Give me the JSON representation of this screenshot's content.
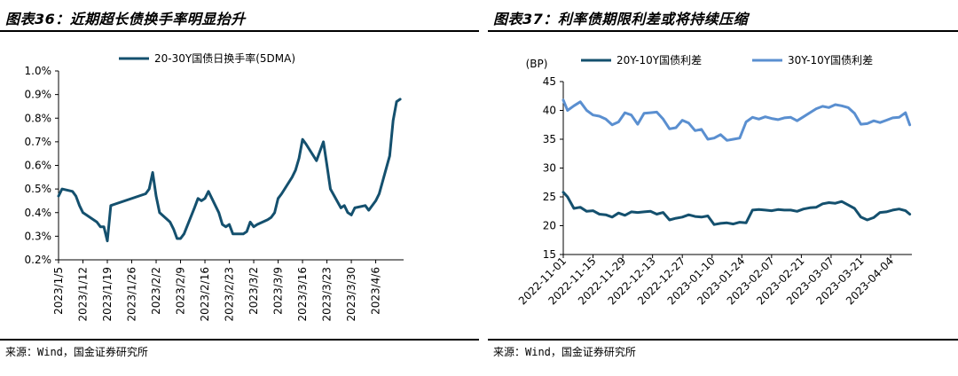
{
  "charts": [
    {
      "figure_title": "图表36：近期超长债换手率明显抬升",
      "source": "来源：Wind，国金证券研究所"
    },
    {
      "figure_title": "图表37：利率债期限利差或将持续压缩",
      "source": "来源：Wind，国金证券研究所"
    }
  ],
  "colors": {
    "dark_teal": "#14506e",
    "light_blue": "#5a8fd0"
  },
  "chart_data": [
    {
      "type": "line",
      "title": "",
      "xlabel": "",
      "ylabel": "",
      "ylim": [
        0.002,
        0.01
      ],
      "y_ticks": [
        0.002,
        0.003,
        0.004,
        0.005,
        0.006,
        0.007,
        0.008,
        0.009,
        0.01
      ],
      "y_tick_labels": [
        "0.2%",
        "0.3%",
        "0.4%",
        "0.5%",
        "0.6%",
        "0.7%",
        "0.8%",
        "0.9%",
        "1.0%"
      ],
      "x_tick_labels": [
        "2023/1/5",
        "2023/1/12",
        "2023/1/19",
        "2023/1/26",
        "2023/2/2",
        "2023/2/9",
        "2023/2/16",
        "2023/2/23",
        "2023/3/2",
        "2023/3/9",
        "2023/3/16",
        "2023/3/23",
        "2023/3/30",
        "2023/4/6"
      ],
      "legend_position": "top",
      "grid": false,
      "series": [
        {
          "name": "20-30Y国债日换手率(5DMA)",
          "color": "#14506e",
          "x": [
            "2023-01-05",
            "2023-01-06",
            "2023-01-09",
            "2023-01-10",
            "2023-01-11",
            "2023-01-12",
            "2023-01-13",
            "2023-01-16",
            "2023-01-17",
            "2023-01-18",
            "2023-01-19",
            "2023-01-20",
            "2023-01-30",
            "2023-01-31",
            "2023-02-01",
            "2023-02-02",
            "2023-02-03",
            "2023-02-06",
            "2023-02-07",
            "2023-02-08",
            "2023-02-09",
            "2023-02-10",
            "2023-02-13",
            "2023-02-14",
            "2023-02-15",
            "2023-02-16",
            "2023-02-17",
            "2023-02-20",
            "2023-02-21",
            "2023-02-22",
            "2023-02-23",
            "2023-02-24",
            "2023-02-27",
            "2023-02-28",
            "2023-03-01",
            "2023-03-02",
            "2023-03-03",
            "2023-03-06",
            "2023-03-07",
            "2023-03-08",
            "2023-03-09",
            "2023-03-10",
            "2023-03-13",
            "2023-03-14",
            "2023-03-15",
            "2023-03-16",
            "2023-03-17",
            "2023-03-20",
            "2023-03-21",
            "2023-03-22",
            "2023-03-23",
            "2023-03-24",
            "2023-03-27",
            "2023-03-28",
            "2023-03-29",
            "2023-03-30",
            "2023-03-31",
            "2023-04-03",
            "2023-04-04",
            "2023-04-06",
            "2023-04-07",
            "2023-04-10",
            "2023-04-11",
            "2023-04-12",
            "2023-04-13"
          ],
          "values": [
            0.0047,
            0.005,
            0.0049,
            0.0047,
            0.0043,
            0.004,
            0.0039,
            0.0036,
            0.0034,
            0.0034,
            0.0028,
            0.0043,
            0.0048,
            0.005,
            0.0057,
            0.0047,
            0.004,
            0.0036,
            0.0033,
            0.0029,
            0.0029,
            0.0031,
            0.0042,
            0.0046,
            0.0045,
            0.0046,
            0.0049,
            0.004,
            0.0035,
            0.0034,
            0.0035,
            0.0031,
            0.0031,
            0.0032,
            0.0036,
            0.0034,
            0.0035,
            0.0037,
            0.0038,
            0.004,
            0.0046,
            0.0048,
            0.0055,
            0.0058,
            0.0063,
            0.0071,
            0.0069,
            0.0062,
            0.0066,
            0.007,
            0.006,
            0.005,
            0.0042,
            0.0043,
            0.004,
            0.0039,
            0.0042,
            0.0043,
            0.0041,
            0.0045,
            0.0048,
            0.0064,
            0.0079,
            0.0087,
            0.0088
          ]
        }
      ]
    },
    {
      "type": "line",
      "title": "",
      "xlabel": "",
      "ylabel": "(BP)",
      "ylim": [
        15,
        45
      ],
      "y_ticks": [
        15,
        20,
        25,
        30,
        35,
        40,
        45
      ],
      "y_tick_labels": [
        "15",
        "20",
        "25",
        "30",
        "35",
        "40",
        "45"
      ],
      "x_tick_labels": [
        "2022-11-01",
        "2022-11-15",
        "2022-11-29",
        "2022-12-13",
        "2022-12-27",
        "2023-01-10",
        "2023-01-24",
        "2023-02-07",
        "2023-02-21",
        "2023-03-07",
        "2023-03-21",
        "2023-04-04"
      ],
      "legend_position": "top",
      "grid": false,
      "series": [
        {
          "name": "20Y-10Y国债利差",
          "color": "#14506e",
          "x": [
            "2022-11-01",
            "2022-11-03",
            "2022-11-06",
            "2022-11-09",
            "2022-11-12",
            "2022-11-15",
            "2022-11-18",
            "2022-11-21",
            "2022-11-24",
            "2022-11-27",
            "2022-11-30",
            "2022-12-03",
            "2022-12-06",
            "2022-12-09",
            "2022-12-12",
            "2022-12-15",
            "2022-12-18",
            "2022-12-21",
            "2022-12-24",
            "2022-12-27",
            "2022-12-30",
            "2023-01-02",
            "2023-01-05",
            "2023-01-08",
            "2023-01-11",
            "2023-01-14",
            "2023-01-17",
            "2023-01-20",
            "2023-01-23",
            "2023-01-26",
            "2023-01-29",
            "2023-02-01",
            "2023-02-04",
            "2023-02-07",
            "2023-02-10",
            "2023-02-13",
            "2023-02-16",
            "2023-02-19",
            "2023-02-22",
            "2023-02-25",
            "2023-02-28",
            "2023-03-03",
            "2023-03-06",
            "2023-03-09",
            "2023-03-12",
            "2023-03-15",
            "2023-03-18",
            "2023-03-21",
            "2023-03-24",
            "2023-03-27",
            "2023-03-30",
            "2023-04-02",
            "2023-04-05",
            "2023-04-08",
            "2023-04-11",
            "2023-04-13"
          ],
          "values": [
            25.8,
            25.0,
            23.0,
            23.2,
            22.5,
            22.6,
            22.0,
            21.9,
            21.5,
            22.2,
            21.8,
            22.4,
            22.3,
            22.4,
            22.5,
            22.0,
            22.3,
            21.0,
            21.3,
            21.5,
            21.9,
            21.6,
            21.5,
            21.7,
            20.2,
            20.4,
            20.5,
            20.3,
            20.6,
            20.5,
            22.7,
            22.8,
            22.7,
            22.6,
            22.8,
            22.7,
            22.7,
            22.5,
            22.9,
            23.1,
            23.2,
            23.8,
            24.0,
            23.9,
            24.2,
            23.6,
            23.0,
            21.5,
            21.0,
            21.4,
            22.3,
            22.4,
            22.7,
            22.9,
            22.6,
            22.0
          ]
        },
        {
          "name": "30Y-10Y国债利差",
          "color": "#5a8fd0",
          "x": [
            "2022-11-01",
            "2022-11-03",
            "2022-11-06",
            "2022-11-09",
            "2022-11-12",
            "2022-11-15",
            "2022-11-18",
            "2022-11-21",
            "2022-11-24",
            "2022-11-27",
            "2022-11-30",
            "2022-12-03",
            "2022-12-06",
            "2022-12-09",
            "2022-12-12",
            "2022-12-15",
            "2022-12-18",
            "2022-12-21",
            "2022-12-24",
            "2022-12-27",
            "2022-12-30",
            "2023-01-02",
            "2023-01-05",
            "2023-01-08",
            "2023-01-11",
            "2023-01-14",
            "2023-01-17",
            "2023-01-20",
            "2023-01-23",
            "2023-01-26",
            "2023-01-29",
            "2023-02-01",
            "2023-02-04",
            "2023-02-07",
            "2023-02-10",
            "2023-02-13",
            "2023-02-16",
            "2023-02-19",
            "2023-02-22",
            "2023-02-25",
            "2023-02-28",
            "2023-03-03",
            "2023-03-06",
            "2023-03-09",
            "2023-03-12",
            "2023-03-15",
            "2023-03-18",
            "2023-03-21",
            "2023-03-24",
            "2023-03-27",
            "2023-03-30",
            "2023-04-02",
            "2023-04-05",
            "2023-04-08",
            "2023-04-11",
            "2023-04-13"
          ],
          "values": [
            41.8,
            40.0,
            40.8,
            41.5,
            40.0,
            39.2,
            39.0,
            38.5,
            37.5,
            38.0,
            39.6,
            39.2,
            37.6,
            39.5,
            39.6,
            39.7,
            38.5,
            36.8,
            37.0,
            38.3,
            37.8,
            36.5,
            36.7,
            35.0,
            35.2,
            35.8,
            34.8,
            35.0,
            35.2,
            38.0,
            38.8,
            38.5,
            38.9,
            38.6,
            38.4,
            38.7,
            38.8,
            38.2,
            38.9,
            39.6,
            40.3,
            40.7,
            40.5,
            41.0,
            40.8,
            40.5,
            39.5,
            37.6,
            37.7,
            38.2,
            37.9,
            38.3,
            38.7,
            38.8,
            39.6,
            37.5
          ]
        }
      ]
    }
  ]
}
